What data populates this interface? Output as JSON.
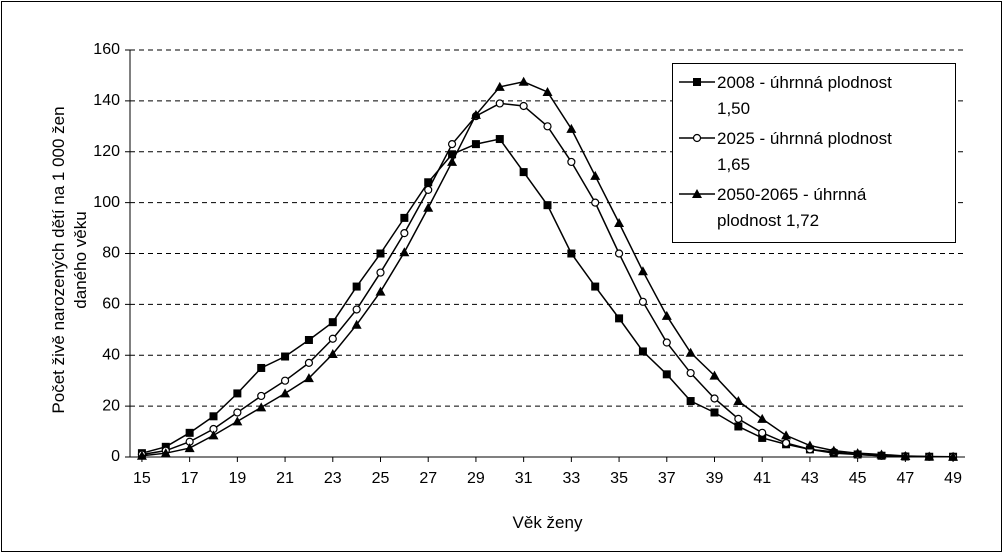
{
  "chart_data": {
    "type": "line",
    "x_label": "Věk ženy",
    "y_label": "Počet živě narozených dětí na 1 000 žen daného věku",
    "x": [
      15,
      16,
      17,
      18,
      19,
      20,
      21,
      22,
      23,
      24,
      25,
      26,
      27,
      28,
      29,
      30,
      31,
      32,
      33,
      34,
      35,
      36,
      37,
      38,
      39,
      40,
      41,
      42,
      43,
      44,
      45,
      46,
      47,
      48,
      49
    ],
    "xlim": [
      14.5,
      49.5
    ],
    "xticks": [
      15,
      17,
      19,
      21,
      23,
      25,
      27,
      29,
      31,
      33,
      35,
      37,
      39,
      41,
      43,
      45,
      47,
      49
    ],
    "ylim": [
      0,
      160
    ],
    "yticks": [
      0,
      20,
      40,
      60,
      80,
      100,
      120,
      140,
      160
    ],
    "grid": true,
    "legend": "upper right",
    "series": [
      {
        "name": "2008 - úhrnná plodnost 1,50",
        "color": "#000000",
        "marker": "square",
        "values": [
          1.5,
          4,
          9.5,
          16,
          25,
          35,
          39.5,
          46,
          53,
          67,
          80,
          94,
          108,
          119,
          123,
          125,
          112,
          99,
          80,
          67,
          54.5,
          41.5,
          32.5,
          22,
          17.5,
          12,
          7.5,
          5,
          3,
          1.5,
          1,
          0.5,
          0.2,
          0.1,
          0.1
        ]
      },
      {
        "name": "2025 - úhrnná plodnost 1,65",
        "color": "#000000",
        "marker": "circle",
        "values": [
          1,
          2.5,
          6,
          11,
          17.5,
          24,
          30,
          37,
          46.5,
          58,
          72.5,
          88,
          105,
          123,
          134,
          139,
          138,
          130,
          116,
          100,
          80,
          61,
          45,
          33,
          23,
          15,
          9.5,
          5.5,
          3,
          2,
          1,
          0.5,
          0.3,
          0.1,
          0.1
        ]
      },
      {
        "name": "2050-2065 - úhrnná plodnost 1,72",
        "color": "#000000",
        "marker": "triangle",
        "values": [
          0.5,
          1.5,
          3.5,
          8.5,
          14,
          19.5,
          25,
          31,
          40.5,
          52,
          65,
          80.5,
          98,
          116,
          134.5,
          145.5,
          147.5,
          143.5,
          129,
          110.5,
          92,
          73,
          55.5,
          41,
          32,
          22,
          15,
          8.5,
          4.5,
          2.5,
          1.5,
          1,
          0.4,
          0.2,
          0.1
        ]
      }
    ]
  }
}
